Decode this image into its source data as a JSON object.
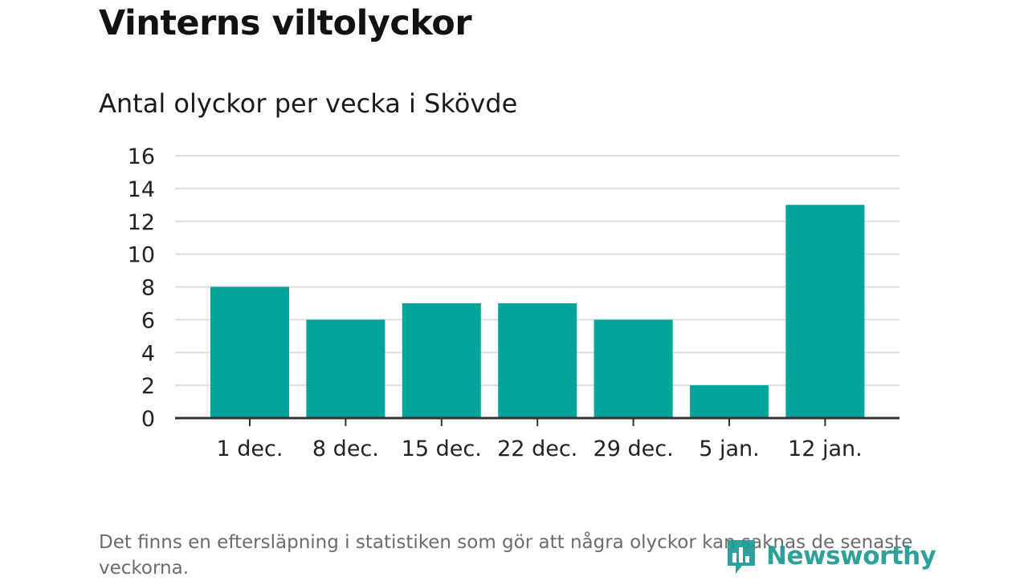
{
  "header": {
    "title": "Vinterns viltolyckor",
    "subtitle": "Antal olyckor per vecka i Skövde"
  },
  "footer": {
    "note": "Det finns en eftersläpning i statistiken som gör att några olyckor kan saknas de senaste veckorna.",
    "brand": "Newsworthy",
    "brand_color": "#1d9a92"
  },
  "chart_data": {
    "type": "bar",
    "title": "Vinterns viltolyckor",
    "subtitle": "Antal olyckor per vecka i Skövde",
    "categories": [
      "1 dec.",
      "8 dec.",
      "15 dec.",
      "22 dec.",
      "29 dec.",
      "5 jan.",
      "12 jan."
    ],
    "values": [
      8,
      6,
      7,
      7,
      6,
      2,
      13
    ],
    "ylim": [
      0,
      16
    ],
    "yticks": [
      0,
      2,
      4,
      6,
      8,
      10,
      12,
      14,
      16
    ],
    "grid": true,
    "bar_color": "#00a49b",
    "grid_color": "#dddddd",
    "axis_color": "#333333"
  }
}
